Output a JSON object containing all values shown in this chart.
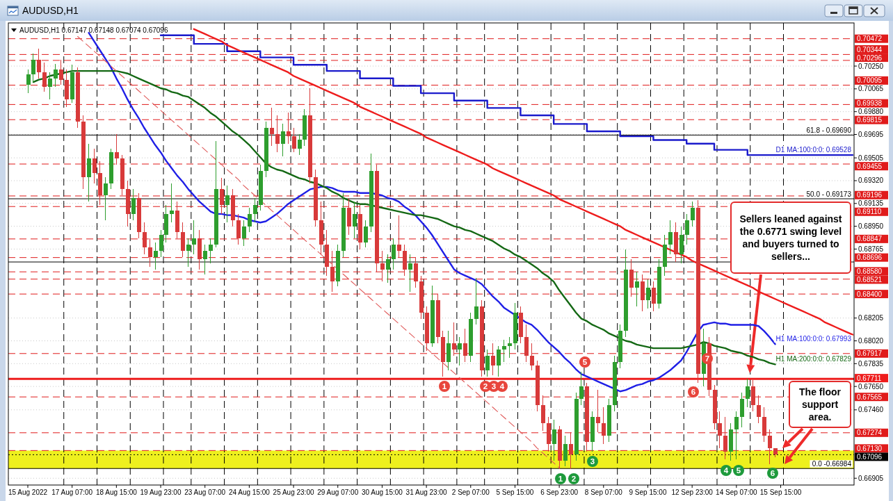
{
  "chart_data": {
    "type": "candlestick",
    "title": "AUDUSD,H1",
    "subtitle": "AUDUSD,H1 0.67147 0.67148 0.67074 0.67096",
    "categories": [
      "15 Aug 2022",
      null,
      null,
      null,
      null,
      null,
      null,
      null,
      "17 Aug 07:00",
      null,
      null,
      null,
      null,
      null,
      null,
      null,
      "18 Aug 15:00",
      null,
      null,
      null,
      null,
      null,
      null,
      null,
      "19 Aug 23:00",
      null,
      null,
      null,
      null,
      null,
      null,
      null,
      "23 Aug 07:00",
      null,
      null,
      null,
      null,
      null,
      null,
      null,
      "24 Aug 15:00",
      null,
      null,
      null,
      null,
      null,
      null,
      null,
      "25 Aug 23:00",
      null,
      null,
      null,
      null,
      null,
      null,
      null,
      "29 Aug 07:00",
      null,
      null,
      null,
      null,
      null,
      null,
      null,
      "30 Aug 15:00",
      null,
      null,
      null,
      null,
      null,
      null,
      null,
      "31 Aug 23:00",
      null,
      null,
      null,
      null,
      null,
      null,
      null,
      "2 Sep 07:00",
      null,
      null,
      null,
      null,
      null,
      null,
      null,
      "5 Sep 15:00",
      null,
      null,
      null,
      null,
      null,
      null,
      null,
      "6 Sep 23:00",
      null,
      null,
      null,
      null,
      null,
      null,
      null,
      "8 Sep 07:00",
      null,
      null,
      null,
      null,
      null,
      null,
      null,
      "9 Sep 15:00",
      null,
      null,
      null,
      null,
      null,
      null,
      null,
      "12 Sep 23:00",
      null,
      null,
      null,
      null,
      null,
      null,
      null,
      "14 Sep 07:00",
      null,
      null,
      null,
      null,
      null,
      null,
      null,
      "15 Sep 15:00",
      null,
      null,
      null,
      null,
      null,
      null,
      null,
      null,
      null,
      null,
      null,
      null,
      null
    ],
    "ylim": [
      0.6685,
      0.706
    ],
    "yticks": [
      {
        "value": 0.7025,
        "label": "0.70250"
      },
      {
        "value": 0.70065,
        "label": "0.70065"
      },
      {
        "value": 0.6988,
        "label": "0.69880"
      },
      {
        "value": 0.69695,
        "label": "0.69695"
      },
      {
        "value": 0.69505,
        "label": "0.69505"
      },
      {
        "value": 0.6932,
        "label": "0.69320"
      },
      {
        "value": 0.69135,
        "label": "0.69135"
      },
      {
        "value": 0.6895,
        "label": "0.68950"
      },
      {
        "value": 0.68765,
        "label": "0.68765"
      },
      {
        "value": 0.68205,
        "label": "0.68205"
      },
      {
        "value": 0.6802,
        "label": "0.68020"
      },
      {
        "value": 0.67835,
        "label": "0.67835"
      },
      {
        "value": 0.6765,
        "label": "0.67650"
      },
      {
        "value": 0.6746,
        "label": "0.67460"
      },
      {
        "value": 0.66905,
        "label": "0.66905"
      }
    ],
    "grid": "y",
    "ohlc": [
      [
        0.701,
        0.7022,
        0.7003,
        0.7018
      ],
      [
        0.7018,
        0.7035,
        0.7012,
        0.703
      ],
      [
        0.703,
        0.7039,
        0.7015,
        0.702
      ],
      [
        0.702,
        0.7028,
        0.7004,
        0.7008
      ],
      [
        0.7008,
        0.702,
        0.6998,
        0.7015
      ],
      [
        0.7015,
        0.7027,
        0.7008,
        0.7022
      ],
      [
        0.7022,
        0.703,
        0.701,
        0.7014
      ],
      [
        0.7014,
        0.7022,
        0.6992,
        0.6998
      ],
      [
        0.6998,
        0.7026,
        0.6995,
        0.702
      ],
      [
        0.702,
        0.7024,
        0.6975,
        0.698
      ],
      [
        0.698,
        0.6985,
        0.6925,
        0.6935
      ],
      [
        0.6935,
        0.6962,
        0.6915,
        0.695
      ],
      [
        0.695,
        0.6958,
        0.693,
        0.6938
      ],
      [
        0.6938,
        0.6948,
        0.6912,
        0.692
      ],
      [
        0.692,
        0.6935,
        0.69,
        0.693
      ],
      [
        0.693,
        0.6958,
        0.6925,
        0.6955
      ],
      [
        0.6955,
        0.697,
        0.6945,
        0.695
      ],
      [
        0.695,
        0.6953,
        0.692,
        0.6925
      ],
      [
        0.6925,
        0.6932,
        0.6895,
        0.6905
      ],
      [
        0.6905,
        0.6925,
        0.69,
        0.6918
      ],
      [
        0.6918,
        0.6922,
        0.6885,
        0.689
      ],
      [
        0.689,
        0.6898,
        0.6872,
        0.6878
      ],
      [
        0.6878,
        0.6885,
        0.6862,
        0.687
      ],
      [
        0.687,
        0.6882,
        0.686,
        0.6875
      ],
      [
        0.6875,
        0.6892,
        0.687,
        0.6888
      ],
      [
        0.6888,
        0.6912,
        0.6882,
        0.6905
      ],
      [
        0.6905,
        0.693,
        0.6898,
        0.6908
      ],
      [
        0.6908,
        0.6915,
        0.6885,
        0.689
      ],
      [
        0.689,
        0.6898,
        0.687,
        0.6875
      ],
      [
        0.6875,
        0.6885,
        0.6862,
        0.688
      ],
      [
        0.688,
        0.69,
        0.6872,
        0.6885
      ],
      [
        0.6885,
        0.6892,
        0.686,
        0.6868
      ],
      [
        0.6868,
        0.688,
        0.6856,
        0.6875
      ],
      [
        0.6875,
        0.6885,
        0.6865,
        0.688
      ],
      [
        0.688,
        0.6964,
        0.6878,
        0.6925
      ],
      [
        0.6925,
        0.6934,
        0.6905,
        0.6912
      ],
      [
        0.6912,
        0.6928,
        0.6898,
        0.692
      ],
      [
        0.692,
        0.6925,
        0.6895,
        0.69
      ],
      [
        0.69,
        0.6905,
        0.688,
        0.6885
      ],
      [
        0.6885,
        0.69,
        0.6879,
        0.6895
      ],
      [
        0.6895,
        0.691,
        0.689,
        0.6905
      ],
      [
        0.6905,
        0.6918,
        0.6898,
        0.6912
      ],
      [
        0.6912,
        0.6945,
        0.6908,
        0.694
      ],
      [
        0.694,
        0.698,
        0.6935,
        0.6975
      ],
      [
        0.6975,
        0.6991,
        0.696,
        0.697
      ],
      [
        0.697,
        0.6985,
        0.6955,
        0.6962
      ],
      [
        0.6962,
        0.6978,
        0.6952,
        0.6972
      ],
      [
        0.6972,
        0.6987,
        0.6962,
        0.6968
      ],
      [
        0.6968,
        0.6975,
        0.6955,
        0.6958
      ],
      [
        0.6958,
        0.697,
        0.6953,
        0.6965
      ],
      [
        0.6965,
        0.699,
        0.696,
        0.6985
      ],
      [
        0.6985,
        0.7007,
        0.693,
        0.6935
      ],
      [
        0.6935,
        0.6941,
        0.6895,
        0.69
      ],
      [
        0.69,
        0.6915,
        0.6872,
        0.688
      ],
      [
        0.688,
        0.6892,
        0.6855,
        0.6862
      ],
      [
        0.6862,
        0.6875,
        0.6842,
        0.685
      ],
      [
        0.685,
        0.688,
        0.6846,
        0.6875
      ],
      [
        0.6875,
        0.6922,
        0.687,
        0.691
      ],
      [
        0.691,
        0.6918,
        0.6888,
        0.6895
      ],
      [
        0.6895,
        0.6915,
        0.6885,
        0.6905
      ],
      [
        0.6905,
        0.6912,
        0.6876,
        0.6882
      ],
      [
        0.6882,
        0.69,
        0.6878,
        0.6895
      ],
      [
        0.6895,
        0.6954,
        0.689,
        0.694
      ],
      [
        0.694,
        0.6945,
        0.6858,
        0.6865
      ],
      [
        0.6865,
        0.6875,
        0.685,
        0.686
      ],
      [
        0.686,
        0.6872,
        0.6849,
        0.6868
      ],
      [
        0.6868,
        0.6885,
        0.686,
        0.688
      ],
      [
        0.688,
        0.6904,
        0.687,
        0.6875
      ],
      [
        0.6875,
        0.688,
        0.6855,
        0.686
      ],
      [
        0.686,
        0.6872,
        0.6842,
        0.6865
      ],
      [
        0.6865,
        0.687,
        0.6845,
        0.685
      ],
      [
        0.685,
        0.6855,
        0.682,
        0.6825
      ],
      [
        0.6825,
        0.683,
        0.6794,
        0.68
      ],
      [
        0.68,
        0.6847,
        0.6797,
        0.6835
      ],
      [
        0.6835,
        0.684,
        0.68,
        0.6805
      ],
      [
        0.6805,
        0.681,
        0.6773,
        0.6785
      ],
      [
        0.6785,
        0.681,
        0.6778,
        0.68
      ],
      [
        0.68,
        0.6817,
        0.679,
        0.6795
      ],
      [
        0.6795,
        0.6805,
        0.6782,
        0.68
      ],
      [
        0.68,
        0.6812,
        0.6785,
        0.679
      ],
      [
        0.679,
        0.6825,
        0.6785,
        0.682
      ],
      [
        0.682,
        0.6853,
        0.6815,
        0.683
      ],
      [
        0.683,
        0.6835,
        0.6773,
        0.6778
      ],
      [
        0.6778,
        0.6795,
        0.6773,
        0.679
      ],
      [
        0.679,
        0.68,
        0.6774,
        0.6782
      ],
      [
        0.6782,
        0.6798,
        0.6773,
        0.6795
      ],
      [
        0.6795,
        0.6803,
        0.6785,
        0.6798
      ],
      [
        0.6798,
        0.6805,
        0.6788,
        0.68
      ],
      [
        0.68,
        0.6833,
        0.6795,
        0.6825
      ],
      [
        0.6825,
        0.683,
        0.68,
        0.6805
      ],
      [
        0.6805,
        0.6815,
        0.6785,
        0.679
      ],
      [
        0.679,
        0.68,
        0.6778,
        0.6782
      ],
      [
        0.6782,
        0.6786,
        0.6745,
        0.675
      ],
      [
        0.675,
        0.6758,
        0.6729,
        0.6735
      ],
      [
        0.6735,
        0.674,
        0.6712,
        0.6718
      ],
      [
        0.6718,
        0.6738,
        0.6705,
        0.673
      ],
      [
        0.673,
        0.6733,
        0.6698,
        0.6705
      ],
      [
        0.6705,
        0.6725,
        0.67,
        0.6718
      ],
      [
        0.6718,
        0.6728,
        0.6698,
        0.671
      ],
      [
        0.671,
        0.676,
        0.6705,
        0.6755
      ],
      [
        0.6755,
        0.6777,
        0.675,
        0.6765
      ],
      [
        0.6765,
        0.6768,
        0.6712,
        0.672
      ],
      [
        0.672,
        0.6745,
        0.6712,
        0.674
      ],
      [
        0.674,
        0.6762,
        0.6728,
        0.6735
      ],
      [
        0.6735,
        0.6748,
        0.6718,
        0.6725
      ],
      [
        0.6725,
        0.6755,
        0.672,
        0.675
      ],
      [
        0.675,
        0.679,
        0.6745,
        0.6785
      ],
      [
        0.6785,
        0.6815,
        0.678,
        0.681
      ],
      [
        0.681,
        0.6876,
        0.6805,
        0.686
      ],
      [
        0.686,
        0.6868,
        0.6838,
        0.6845
      ],
      [
        0.6845,
        0.6858,
        0.683,
        0.685
      ],
      [
        0.685,
        0.6856,
        0.6826,
        0.6835
      ],
      [
        0.6835,
        0.6852,
        0.6828,
        0.6845
      ],
      [
        0.6845,
        0.685,
        0.6826,
        0.6832
      ],
      [
        0.6832,
        0.6868,
        0.6828,
        0.6862
      ],
      [
        0.6862,
        0.6888,
        0.6855,
        0.688
      ],
      [
        0.688,
        0.69,
        0.6872,
        0.689
      ],
      [
        0.689,
        0.6898,
        0.6866,
        0.6872
      ],
      [
        0.6872,
        0.6895,
        0.6865,
        0.6888
      ],
      [
        0.6888,
        0.6905,
        0.688,
        0.69
      ],
      [
        0.69,
        0.6915,
        0.6895,
        0.691
      ],
      [
        0.691,
        0.6916,
        0.6768,
        0.6775
      ],
      [
        0.6775,
        0.6812,
        0.6765,
        0.68
      ],
      [
        0.68,
        0.6805,
        0.6757,
        0.6762
      ],
      [
        0.6762,
        0.6766,
        0.673,
        0.6735
      ],
      [
        0.6735,
        0.6745,
        0.6715,
        0.6725
      ],
      [
        0.6725,
        0.674,
        0.6706,
        0.6712
      ],
      [
        0.6712,
        0.6735,
        0.6705,
        0.673
      ],
      [
        0.673,
        0.6745,
        0.6706,
        0.674
      ],
      [
        0.674,
        0.676,
        0.6732,
        0.6755
      ],
      [
        0.6755,
        0.6771,
        0.6748,
        0.6765
      ],
      [
        0.6765,
        0.677,
        0.6745,
        0.675
      ],
      [
        0.675,
        0.6758,
        0.6735,
        0.674
      ],
      [
        0.674,
        0.6748,
        0.672,
        0.6725
      ],
      [
        0.6725,
        0.673,
        0.6702,
        0.6715
      ],
      [
        0.67147,
        0.67148,
        0.67074,
        0.67096
      ],
      null,
      null,
      null,
      null,
      null,
      null,
      null,
      null,
      null,
      null,
      null,
      null,
      null,
      null
    ],
    "colors": [
      "#2e9e2e",
      "#2e9e2e",
      "#d83a3a",
      "#d83a3a",
      "#2e9e2e",
      "#2e9e2e",
      "#d83a3a",
      "#d83a3a",
      "#2e9e2e",
      "#d83a3a",
      "#d83a3a",
      "#2e9e2e",
      "#d83a3a",
      "#d83a3a",
      "#2e9e2e",
      "#2e9e2e",
      "#d83a3a",
      "#d83a3a",
      "#d83a3a",
      "#2e9e2e",
      "#d83a3a",
      "#d83a3a",
      "#d83a3a",
      "#2e9e2e",
      "#2e9e2e",
      "#2e9e2e",
      "#2e9e2e",
      "#d83a3a",
      "#d83a3a",
      "#2e9e2e",
      "#2e9e2e",
      "#d83a3a",
      "#2e9e2e",
      "#2e9e2e",
      "#2e9e2e",
      "#d83a3a",
      "#2e9e2e",
      "#d83a3a",
      "#d83a3a",
      "#2e9e2e",
      "#2e9e2e",
      "#2e9e2e",
      "#2e9e2e",
      "#2e9e2e",
      "#d83a3a",
      "#d83a3a",
      "#2e9e2e",
      "#d83a3a",
      "#d83a3a",
      "#2e9e2e",
      "#2e9e2e",
      "#d83a3a",
      "#d83a3a",
      "#d83a3a",
      "#d83a3a",
      "#d83a3a",
      "#2e9e2e",
      "#2e9e2e",
      "#d83a3a",
      "#2e9e2e",
      "#d83a3a",
      "#2e9e2e",
      "#2e9e2e",
      "#d83a3a",
      "#d83a3a",
      "#2e9e2e",
      "#2e9e2e",
      "#d83a3a",
      "#d83a3a",
      "#2e9e2e",
      "#d83a3a",
      "#d83a3a",
      "#d83a3a",
      "#2e9e2e",
      "#d83a3a",
      "#d83a3a",
      "#2e9e2e",
      "#d83a3a",
      "#2e9e2e",
      "#d83a3a",
      "#2e9e2e",
      "#2e9e2e",
      "#d83a3a",
      "#2e9e2e",
      "#d83a3a",
      "#2e9e2e",
      "#2e9e2e",
      "#2e9e2e",
      "#2e9e2e",
      "#d83a3a",
      "#d83a3a",
      "#d83a3a",
      "#d83a3a",
      "#d83a3a",
      "#d83a3a",
      "#2e9e2e",
      "#d83a3a",
      "#2e9e2e",
      "#d83a3a",
      "#2e9e2e",
      "#2e9e2e",
      "#d83a3a",
      "#2e9e2e",
      "#d83a3a",
      "#d83a3a",
      "#2e9e2e",
      "#2e9e2e",
      "#2e9e2e",
      "#2e9e2e",
      "#d83a3a",
      "#2e9e2e",
      "#d83a3a",
      "#2e9e2e",
      "#d83a3a",
      "#2e9e2e",
      "#2e9e2e",
      "#2e9e2e",
      "#d83a3a",
      "#2e9e2e",
      "#2e9e2e",
      "#2e9e2e",
      "#d83a3a",
      "#2e9e2e",
      "#d83a3a",
      "#d83a3a",
      "#d83a3a",
      "#d83a3a",
      "#2e9e2e",
      "#2e9e2e",
      "#2e9e2e",
      "#2e9e2e",
      "#d83a3a",
      "#d83a3a",
      "#d83a3a",
      "#d83a3a",
      "#d83a3a",
      null,
      null,
      null,
      null,
      null,
      null,
      null,
      null,
      null,
      null,
      null,
      null,
      null,
      null
    ],
    "series": [
      {
        "type": "step",
        "name": "D1 MA:100:0:0: 0.69528",
        "color": "#1a1acc",
        "values": [
          null,
          null,
          null,
          null,
          null,
          null,
          null,
          null,
          null,
          null,
          null,
          null,
          null,
          null,
          null,
          null,
          null,
          null,
          null,
          null,
          null,
          null,
          null,
          null,
          0.705,
          0.705,
          0.705,
          0.705,
          0.705,
          0.705,
          0.7043,
          0.7043,
          0.7043,
          0.7043,
          0.7043,
          0.7043,
          0.7037,
          0.7037,
          0.7037,
          0.7037,
          0.7037,
          0.7037,
          0.7032,
          0.7032,
          0.7032,
          0.7032,
          0.7032,
          0.7032,
          0.7026,
          0.7026,
          0.7026,
          0.7026,
          0.7026,
          0.7026,
          0.7021,
          0.7021,
          0.7021,
          0.7021,
          0.7021,
          0.7021,
          0.7015,
          0.7015,
          0.7015,
          0.7015,
          0.7015,
          0.7015,
          0.7009,
          0.7009,
          0.7009,
          0.7009,
          0.7009,
          0.7003,
          0.7003,
          0.7003,
          0.7003,
          0.7003,
          0.7003,
          0.6997,
          0.6997,
          0.6997,
          0.6997,
          0.6997,
          0.6997,
          0.6991,
          0.6991,
          0.6991,
          0.6991,
          0.6991,
          0.6991,
          0.6985,
          0.6985,
          0.6985,
          0.6985,
          0.6985,
          0.6985,
          0.6978,
          0.6978,
          0.6978,
          0.6978,
          0.6978,
          0.6978,
          0.6972,
          0.6972,
          0.6972,
          0.6972,
          0.6972,
          0.6972,
          0.6968,
          0.6968,
          0.6968,
          0.6968,
          0.6968,
          0.6968,
          0.6965,
          0.6965,
          0.6965,
          0.6965,
          0.6965,
          0.6965,
          0.6962,
          0.6962,
          0.6962,
          0.6962,
          0.6962,
          0.6957,
          0.6957,
          0.6957,
          0.6957,
          0.6957,
          0.6957,
          0.69528,
          0.69528,
          0.69528,
          0.69528,
          0.69528,
          0.69528,
          0.69528,
          0.69528,
          0.69528,
          0.69528,
          0.69528,
          0.69528,
          0.69528,
          0.69528,
          0.69528,
          0.69528,
          0.69528,
          0.69528,
          0.69528,
          0.69528
        ]
      },
      {
        "type": "line",
        "name": "H1 MA:100:0:0: 0.67993",
        "color": "#1f1fe6",
        "values": [
          null,
          null,
          null,
          null,
          null,
          null,
          null,
          null,
          null,
          null,
          null,
          0.7052,
          0.7045,
          0.7038,
          0.7031,
          0.7024,
          0.7015,
          0.7007,
          0.6998,
          0.699,
          0.6983,
          0.6975,
          0.6968,
          0.6961,
          0.6955,
          0.6948,
          0.6942,
          0.6936,
          0.6931,
          0.6925,
          0.692,
          0.6915,
          0.6911,
          0.6907,
          0.6905,
          0.6905,
          0.6904,
          0.6904,
          0.6903,
          0.6902,
          0.69,
          0.6899,
          0.6898,
          0.6899,
          0.6902,
          0.6905,
          0.6909,
          0.6913,
          0.6916,
          0.6919,
          0.6922,
          0.6925,
          0.6926,
          0.6927,
          0.6927,
          0.6926,
          0.6924,
          0.6923,
          0.6923,
          0.6923,
          0.6922,
          0.6922,
          0.6922,
          0.6921,
          0.692,
          0.6918,
          0.6917,
          0.6915,
          0.6911,
          0.6908,
          0.6904,
          0.6899,
          0.6894,
          0.6888,
          0.6881,
          0.6874,
          0.6867,
          0.686,
          0.6857,
          0.6855,
          0.6853,
          0.6851,
          0.6848,
          0.6843,
          0.6838,
          0.6834,
          0.6829,
          0.6826,
          0.6823,
          0.682,
          0.6817,
          0.6815,
          0.6811,
          0.6806,
          0.6801,
          0.6797,
          0.6793,
          0.6788,
          0.6784,
          0.6779,
          0.6775,
          0.6773,
          0.6771,
          0.6769,
          0.6767,
          0.6765,
          0.6763,
          0.6761,
          0.6762,
          0.6764,
          0.6766,
          0.6767,
          0.6769,
          0.677,
          0.6772,
          0.6775,
          0.6778,
          0.6782,
          0.6786,
          0.6793,
          0.6801,
          0.6809,
          0.6815,
          0.6816,
          0.6817,
          0.6816,
          0.6816,
          0.6815,
          0.6815,
          0.6815,
          0.6815,
          0.6815,
          0.6814,
          0.681,
          0.6805,
          0.67993,
          null,
          null,
          null,
          null,
          null,
          null,
          null,
          null,
          null,
          null,
          null,
          null,
          null,
          null
        ]
      },
      {
        "type": "line",
        "name": "H1 MA:200:0:0: 0.67829",
        "color": "#146814",
        "values": [
          null,
          0.7012,
          0.7014,
          0.7015,
          0.7017,
          0.7018,
          0.7019,
          0.702,
          0.7021,
          0.7021,
          0.7021,
          0.7021,
          0.7021,
          0.7021,
          0.7021,
          0.7021,
          0.7021,
          0.702,
          0.7019,
          0.7017,
          0.7015,
          0.7013,
          0.7011,
          0.7009,
          0.7007,
          0.7006,
          0.7004,
          0.7003,
          0.7001,
          0.7,
          0.6997,
          0.6994,
          0.6991,
          0.6987,
          0.6984,
          0.698,
          0.6976,
          0.6972,
          0.6969,
          0.6965,
          0.6961,
          0.6956,
          0.6951,
          0.6946,
          0.6943,
          0.6941,
          0.694,
          0.6938,
          0.6936,
          0.6934,
          0.6933,
          0.6931,
          0.693,
          0.6928,
          0.6926,
          0.6923,
          0.6921,
          0.6918,
          0.6916,
          0.6914,
          0.6913,
          0.6913,
          0.6912,
          0.6911,
          0.691,
          0.6909,
          0.6908,
          0.6907,
          0.6906,
          0.6905,
          0.6904,
          0.6904,
          0.6903,
          0.6902,
          0.6901,
          0.6899,
          0.6897,
          0.6895,
          0.6894,
          0.6892,
          0.6891,
          0.6889,
          0.6887,
          0.6885,
          0.6883,
          0.688,
          0.6877,
          0.6875,
          0.6872,
          0.687,
          0.6867,
          0.6864,
          0.6861,
          0.6857,
          0.6854,
          0.685,
          0.6843,
          0.6837,
          0.6831,
          0.6825,
          0.682,
          0.6818,
          0.6815,
          0.6813,
          0.6811,
          0.6808,
          0.6806,
          0.6804,
          0.6802,
          0.6801,
          0.6799,
          0.6798,
          0.6797,
          0.6796,
          0.6796,
          0.6796,
          0.6796,
          0.6796,
          0.6796,
          0.6797,
          0.6798,
          0.6799,
          0.6801,
          0.68,
          0.6798,
          0.6797,
          0.6796,
          0.6794,
          0.6793,
          0.6792,
          0.679,
          0.6789,
          0.6787,
          0.6786,
          0.6784,
          0.67829,
          null,
          null,
          null,
          null,
          null,
          null,
          null,
          null,
          null,
          null,
          null,
          null,
          null,
          null
        ]
      },
      {
        "type": "line",
        "color": "#ee1c1c",
        "values": [
          null,
          null,
          null,
          null,
          null,
          null,
          null,
          null,
          null,
          null,
          null,
          null,
          null,
          null,
          null,
          null,
          null,
          null,
          null,
          null,
          null,
          null,
          null,
          null,
          null,
          null,
          null,
          null,
          null,
          null,
          0.7055,
          0.7053,
          0.7051,
          0.7049,
          0.7047,
          0.7045,
          0.7042,
          0.704,
          0.7038,
          0.7036,
          0.7034,
          0.7032,
          0.703,
          0.7028,
          0.7026,
          0.7024,
          0.7022,
          0.702,
          0.7017,
          0.7015,
          0.7013,
          0.7011,
          0.7009,
          0.7007,
          0.7005,
          0.7003,
          0.7001,
          0.6999,
          0.6997,
          0.6995,
          0.6992,
          0.699,
          0.6988,
          0.6986,
          0.6984,
          0.6982,
          0.698,
          0.6978,
          0.6976,
          0.6974,
          0.6972,
          0.697,
          0.6967,
          0.6965,
          0.6963,
          0.6961,
          0.6959,
          0.6957,
          0.6955,
          0.6953,
          0.6951,
          0.6949,
          0.6947,
          0.6945,
          0.6942,
          0.694,
          0.6938,
          0.6936,
          0.6934,
          0.6932,
          0.693,
          0.6928,
          0.6926,
          0.6924,
          0.6922,
          0.692,
          0.6917,
          0.6915,
          0.6913,
          0.6911,
          0.6909,
          0.6907,
          0.6905,
          0.6903,
          0.6901,
          0.6899,
          0.6897,
          0.6895,
          0.6892,
          0.689,
          0.6888,
          0.6886,
          0.6884,
          0.6882,
          0.688,
          0.6878,
          0.6876,
          0.6874,
          0.6872,
          0.687,
          0.6867,
          0.6865,
          0.6863,
          0.6861,
          0.6859,
          0.6857,
          0.6855,
          0.6853,
          0.6851,
          0.6849,
          0.6847,
          0.6845,
          0.6842,
          0.684,
          0.6838,
          0.6836,
          0.6834,
          0.6832,
          0.683,
          0.6828,
          0.6826,
          0.6824,
          0.6822,
          0.682,
          0.6817,
          0.6815,
          0.6813,
          0.6811,
          0.6809,
          0.6807
        ]
      },
      {
        "type": "line",
        "color": "#e05a5a",
        "line_style": "dashed",
        "values": [
          null,
          null,
          null,
          null,
          null,
          null,
          null,
          null,
          null,
          0.7049,
          0.7045,
          0.7041,
          0.7037,
          0.7033,
          0.7029,
          0.7025,
          0.7021,
          0.7017,
          0.7013,
          0.7009,
          0.7005,
          0.7001,
          0.6997,
          0.6993,
          0.6989,
          0.6985,
          0.6981,
          0.6977,
          0.6973,
          0.6969,
          0.6965,
          0.6961,
          0.6957,
          0.6953,
          0.6949,
          0.6945,
          0.6941,
          0.6937,
          0.6933,
          0.6928,
          0.6924,
          0.692,
          0.6916,
          0.6912,
          0.6908,
          0.6904,
          0.69,
          0.6896,
          0.6892,
          0.6888,
          0.6884,
          0.688,
          0.6876,
          0.6872,
          0.6868,
          0.6864,
          0.686,
          0.6856,
          0.6852,
          0.6848,
          0.6844,
          0.684,
          0.6836,
          0.6832,
          0.6828,
          0.6824,
          0.682,
          0.6816,
          0.6812,
          0.6808,
          0.6804,
          0.68,
          0.6796,
          0.6792,
          0.6788,
          0.6784,
          0.678,
          0.6776,
          0.6772,
          0.6768,
          0.6764,
          0.676,
          0.6756,
          0.6752,
          0.6748,
          0.6744,
          0.674,
          0.6736,
          0.6732,
          0.6728,
          0.6724,
          0.672,
          0.6715,
          0.6711,
          0.6707,
          0.6703,
          0.6699,
          null,
          null,
          null,
          null,
          null,
          null,
          null,
          null,
          null,
          null,
          null,
          null,
          null,
          null,
          null,
          null,
          null,
          null,
          null,
          null,
          null,
          null,
          null,
          null,
          null,
          null,
          null,
          null,
          null,
          null,
          null,
          null,
          null,
          null,
          null,
          null,
          null,
          null,
          null,
          null,
          null,
          null,
          null,
          null,
          null,
          null,
          null,
          null,
          null,
          null,
          null,
          null,
          null
        ]
      }
    ],
    "bands": [
      {
        "axis": "y",
        "from": 0.66984,
        "to": 0.6713,
        "color": "#eef01e"
      }
    ],
    "ref_lines": [
      {
        "axis": "y",
        "value": 0.70472,
        "label": "0.70472",
        "color": "#e01b1b",
        "line_style": "dashed"
      },
      {
        "axis": "y",
        "value": 0.70344,
        "label": "0.70344",
        "color": "#e01b1b",
        "line_style": "dashed"
      },
      {
        "axis": "y",
        "value": 0.70296,
        "label": "0.70296",
        "color": "#e01b1b",
        "line_style": "dashed"
      },
      {
        "axis": "y",
        "value": 0.70095,
        "label": "0.70095",
        "color": "#e01b1b",
        "line_style": "dashed"
      },
      {
        "axis": "y",
        "value": 0.69938,
        "label": "0.69938",
        "color": "#e01b1b",
        "line_style": "dashed"
      },
      {
        "axis": "y",
        "value": 0.69815,
        "label": "0.69815",
        "color": "#e01b1b",
        "line_style": "dashed"
      },
      {
        "axis": "y",
        "value": 0.69455,
        "label": "0.69455",
        "color": "#e01b1b",
        "line_style": "dashed"
      },
      {
        "axis": "y",
        "value": 0.69196,
        "label": "0.69196",
        "color": "#e01b1b",
        "line_style": "dashed"
      },
      {
        "axis": "y",
        "value": 0.6911,
        "label": "0.69110",
        "color": "#e01b1b",
        "line_style": "dashed"
      },
      {
        "axis": "y",
        "value": 0.68847,
        "label": "0.68847",
        "color": "#e01b1b",
        "line_style": "dashed"
      },
      {
        "axis": "y",
        "value": 0.68696,
        "label": "0.68696",
        "color": "#e01b1b",
        "line_style": "dashed"
      },
      {
        "axis": "y",
        "value": 0.6858,
        "label": "0.68580",
        "color": "#e01b1b",
        "line_style": "dashed"
      },
      {
        "axis": "y",
        "value": 0.68521,
        "label": "0.68521",
        "color": "#e01b1b",
        "line_style": "dashed"
      },
      {
        "axis": "y",
        "value": 0.684,
        "label": "0.68400",
        "color": "#e01b1b",
        "line_style": "dashed"
      },
      {
        "axis": "y",
        "value": 0.67917,
        "label": "0.67917",
        "color": "#e01b1b",
        "line_style": "dashed"
      },
      {
        "axis": "y",
        "value": 0.67711,
        "label": "0.67711",
        "color": "#ee1c1c",
        "line_style": "solid"
      },
      {
        "axis": "y",
        "value": 0.67565,
        "label": "0.67565",
        "color": "#e01b1b",
        "line_style": "dashed"
      },
      {
        "axis": "y",
        "value": 0.67274,
        "label": "0.67274",
        "color": "#e01b1b",
        "line_style": "dashed"
      },
      {
        "axis": "y",
        "value": 0.6713,
        "label": "0.67130",
        "color": "#e01b1b",
        "line_style": "dashed"
      },
      {
        "axis": "y",
        "value": 0.67096,
        "label": "0.67096",
        "color": "#000000",
        "line_style": "dotted"
      },
      {
        "axis": "y",
        "value": 0.6969,
        "color": "#000000",
        "line_style": "solid"
      },
      {
        "axis": "y",
        "value": 0.69173,
        "color": "#000000",
        "line_style": "solid"
      },
      {
        "axis": "y",
        "value": 0.6866,
        "color": "#000000",
        "line_style": "solid"
      },
      {
        "axis": "y",
        "value": 0.66984,
        "color": "#000000",
        "line_style": "solid"
      }
    ],
    "annotations": [
      {
        "text": "61.8 - 0.69690",
        "y": 0.6969
      },
      {
        "text": "50.0 - 0.69173",
        "y": 0.69173
      },
      {
        "text": "0.0 -0.66984",
        "y": 0.66984
      },
      "1",
      "2",
      "3",
      "4",
      "5",
      "6",
      "7",
      "1",
      "2",
      "3",
      "4",
      "5",
      "6",
      "Sellers leaned against the 0.6771 swing level and buyers turned to sellers...",
      "The floor support area."
    ]
  }
}
